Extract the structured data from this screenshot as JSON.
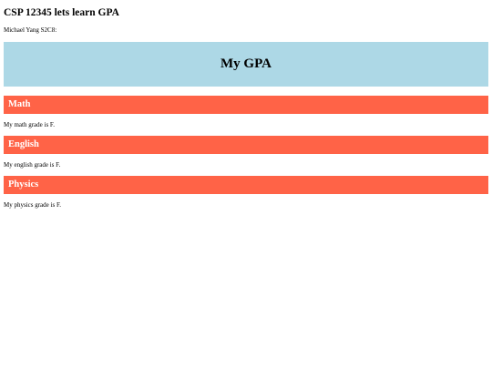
{
  "header": {
    "title": "CSP 12345 lets learn GPA",
    "author": "Michael Yang S2C8:"
  },
  "banner": {
    "title": "My GPA"
  },
  "subjects": [
    {
      "title": "Math",
      "text": "My math grade is F."
    },
    {
      "title": "English",
      "text": "My english grade is F."
    },
    {
      "title": "Physics",
      "text": "My physics grade is F."
    }
  ],
  "colors": {
    "banner_bg": "#add8e6",
    "subject_header_bg": "#ff6347",
    "subject_header_text": "#ffffff"
  }
}
